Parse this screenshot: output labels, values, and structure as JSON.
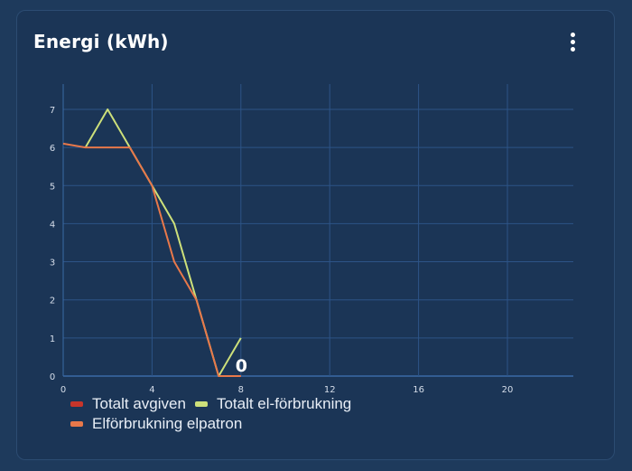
{
  "card": {
    "title": "Energi (kWh)",
    "menu_icon": "more-vertical-icon"
  },
  "chart_data": {
    "type": "line",
    "title": "Energi (kWh)",
    "xlabel": "",
    "ylabel": "",
    "xlim": [
      0,
      23
    ],
    "ylim": [
      0,
      7.7
    ],
    "x_ticks": [
      "0",
      "4",
      "8",
      "12",
      "16",
      "20"
    ],
    "y_ticks": [
      "0",
      "1",
      "2",
      "3",
      "4",
      "5",
      "6",
      "7"
    ],
    "grid": true,
    "legend_position": "bottom",
    "annotation": {
      "text": "0",
      "x": 8,
      "y": 0
    },
    "series": [
      {
        "name": "Totalt avgiven",
        "color": "#c7352a",
        "x": [
          7,
          8
        ],
        "values": [
          0,
          0
        ]
      },
      {
        "name": "Totalt el-förbrukning",
        "color": "#cde07a",
        "x": [
          1,
          2,
          3,
          4,
          5,
          6,
          7,
          8
        ],
        "values": [
          6,
          7,
          6,
          5,
          4,
          2,
          0,
          1
        ]
      },
      {
        "name": "Elförbrukning elpatron",
        "color": "#e8784a",
        "x": [
          0,
          1,
          2,
          3,
          4,
          5,
          6,
          7,
          8
        ],
        "values": [
          6.1,
          6,
          6,
          6,
          5,
          3,
          2,
          0,
          0
        ]
      }
    ]
  },
  "legend": {
    "items": [
      {
        "label": "Totalt avgiven",
        "color": "#c7352a"
      },
      {
        "label": "Totalt el-förbrukning",
        "color": "#cde07a"
      },
      {
        "label": "Elförbrukning elpatron",
        "color": "#e8784a"
      }
    ]
  }
}
